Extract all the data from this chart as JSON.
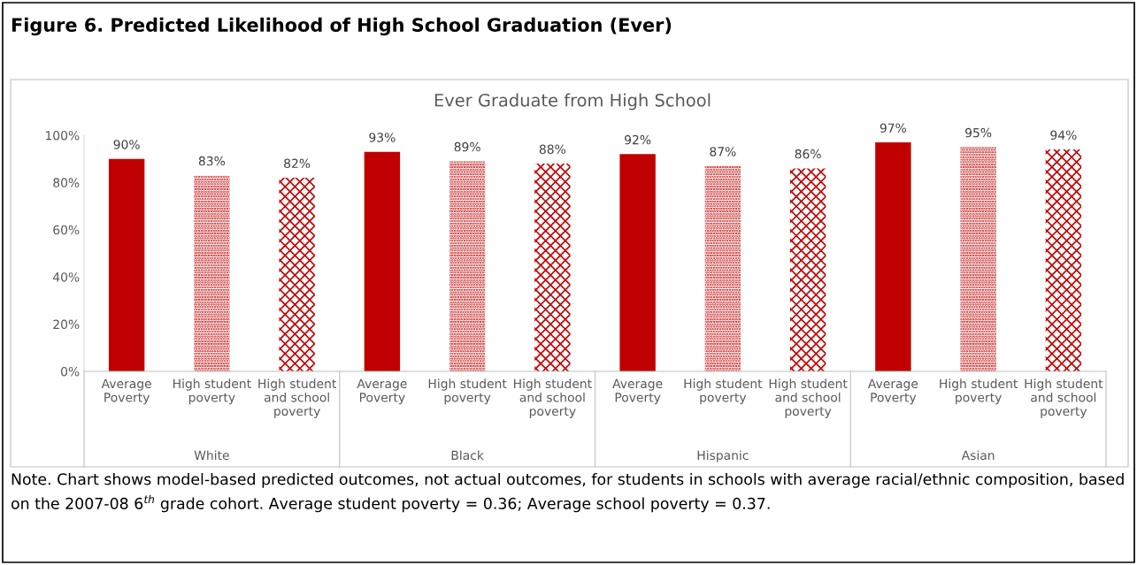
{
  "chart_data": {
    "type": "bar",
    "title": "Figure 6. Predicted Likelihood of High School Graduation (Ever)",
    "subtitle": "Ever Graduate from High School",
    "categories": [
      "Average\nPoverty",
      "High student\npoverty",
      "High student\nand school\npoverty",
      "Average\nPoverty",
      "High student\npoverty",
      "High student\nand school\npoverty",
      "Average\nPoverty",
      "High student\npoverty",
      "High student\nand school\npoverty",
      "Average\nPoverty",
      "High student\npoverty",
      "High student\nand school\npoverty"
    ],
    "values": [
      90,
      83,
      82,
      93,
      89,
      88,
      92,
      87,
      86,
      97,
      95,
      94
    ],
    "value_labels": [
      "90%",
      "83%",
      "82%",
      "93%",
      "89%",
      "88%",
      "92%",
      "87%",
      "86%",
      "97%",
      "95%",
      "94%"
    ],
    "colors": [
      "#c00000",
      "#c00000",
      "#c00000",
      "#c00000",
      "#c00000",
      "#c00000",
      "#c00000",
      "#c00000",
      "#c00000",
      "#c00000",
      "#c00000",
      "#c00000"
    ],
    "ylim": [
      0,
      100
    ],
    "yticks": [
      {
        "value": 0,
        "label": "0%"
      },
      {
        "value": 20,
        "label": "20%"
      },
      {
        "value": 40,
        "label": "40%"
      },
      {
        "value": 60,
        "label": "60%"
      },
      {
        "value": 80,
        "label": "80%"
      },
      {
        "value": 100,
        "label": "100%"
      }
    ],
    "annotations": [
      "White",
      "Black",
      "Hispanic",
      "Asian",
      "Note. Chart shows model-based predicted outcomes, not actual outcomes, for students in schools with average racial/ethnic composition, based on the 2007-08 6$^{th}$ grade cohort. Average student poverty = 0.36; Average school poverty = 0.37."
    ]
  }
}
